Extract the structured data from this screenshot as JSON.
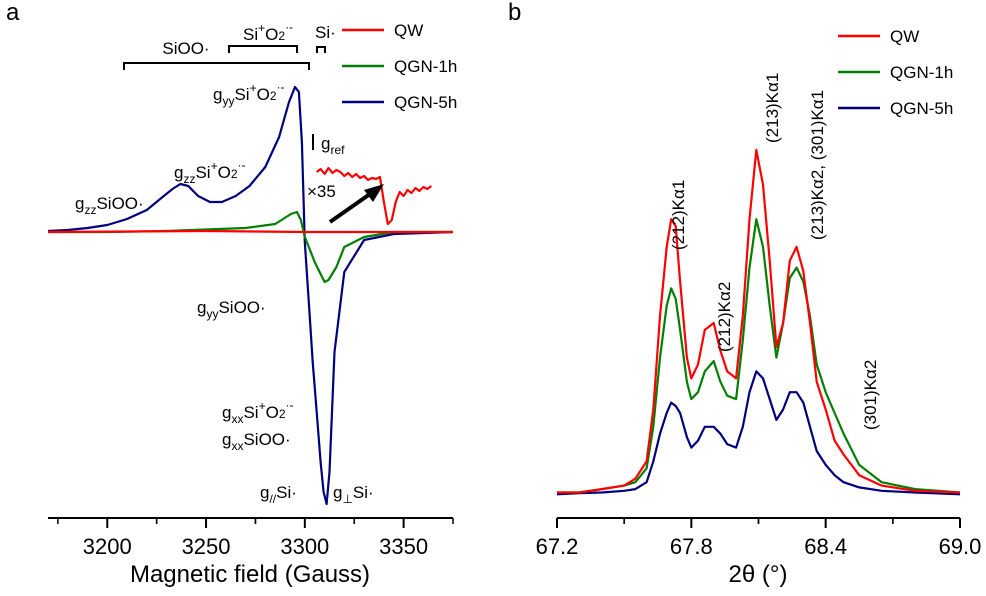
{
  "chart_data": [
    {
      "type": "line",
      "panel_label": "a",
      "title": "",
      "xlabel": "Magnetic field (Gauss)",
      "ylabel": "",
      "xlim": [
        3170,
        3375
      ],
      "ylim": [
        -2.75,
        1.5
      ],
      "x_ticks": [
        3200,
        3250,
        3300,
        3350
      ],
      "x_tick_labels": [
        "3200",
        "3250",
        "3300",
        "3350"
      ],
      "grid": false,
      "legend_position": "top-right",
      "series": [
        {
          "name": "QW",
          "color": "#ff0000",
          "x": [
            3170,
            3250,
            3300,
            3375
          ],
          "y": [
            0,
            0.01,
            0,
            0
          ]
        },
        {
          "name": "QGN-1h",
          "color": "#007f00",
          "x": [
            3170,
            3200,
            3230,
            3250,
            3270,
            3285,
            3293,
            3296,
            3298,
            3300,
            3302,
            3305,
            3308,
            3310,
            3312,
            3316,
            3320,
            3330,
            3345,
            3375
          ],
          "y": [
            0,
            0,
            0.01,
            0.025,
            0.04,
            0.08,
            0.18,
            0.2,
            0.12,
            -0.05,
            -0.15,
            -0.3,
            -0.42,
            -0.5,
            -0.48,
            -0.35,
            -0.15,
            -0.05,
            0,
            0
          ]
        },
        {
          "name": "QGN-5h",
          "color": "#00007f",
          "x": [
            3170,
            3180,
            3190,
            3200,
            3210,
            3220,
            3228,
            3233,
            3237,
            3241,
            3246,
            3252,
            3258,
            3265,
            3272,
            3280,
            3287,
            3292,
            3295,
            3297,
            3298.5,
            3300,
            3302,
            3304,
            3306,
            3308,
            3309.5,
            3311,
            3312.5,
            3315,
            3320,
            3330,
            3345,
            3375
          ],
          "y": [
            0.01,
            0.02,
            0.04,
            0.07,
            0.13,
            0.22,
            0.35,
            0.43,
            0.48,
            0.46,
            0.36,
            0.3,
            0.3,
            0.36,
            0.46,
            0.65,
            0.95,
            1.3,
            1.45,
            1.4,
            0.9,
            -0.1,
            -0.7,
            -1.3,
            -1.8,
            -2.3,
            -2.6,
            -2.72,
            -2.4,
            -1.2,
            -0.4,
            -0.08,
            -0.02,
            0
          ]
        },
        {
          "name": "QW ×35 inset",
          "color": "#ff0000",
          "x": [
            3306,
            3308,
            3310,
            3312,
            3314,
            3316,
            3318,
            3320,
            3322,
            3324,
            3326,
            3328,
            3330,
            3332,
            3334,
            3336,
            3338,
            3340,
            3342,
            3344,
            3346,
            3348,
            3350,
            3352,
            3354,
            3356,
            3358,
            3360,
            3362,
            3364
          ],
          "y": [
            0.6,
            0.63,
            0.58,
            0.64,
            0.59,
            0.62,
            0.6,
            0.56,
            0.59,
            0.55,
            0.58,
            0.54,
            0.56,
            0.52,
            0.54,
            0.53,
            0.55,
            0.3,
            0.08,
            0.12,
            0.3,
            0.4,
            0.36,
            0.42,
            0.39,
            0.44,
            0.41,
            0.45,
            0.43,
            0.46
          ]
        }
      ],
      "annotations": {
        "siOO_bracket": "SiOO·",
        "sio2_bracket": {
          "base": "Si",
          "sup": "+",
          "mid": "O",
          "sub": "2",
          "sup2": "·-"
        },
        "si_bracket": "Si·",
        "gyy_sio2": {
          "g": "g",
          "sub": "yy",
          "base": "Si",
          "sup": "+",
          "mid": "O",
          "sub2": "2",
          "sup2": "·-"
        },
        "gzz_sio2": {
          "g": "g",
          "sub": "zz",
          "base": "Si",
          "sup": "+",
          "mid": "O",
          "sub2": "2",
          "sup2": "·-"
        },
        "gzz_sioo": {
          "g": "g",
          "sub": "zz",
          "text": "SiOO·"
        },
        "gyy_sioo": {
          "g": "g",
          "sub": "yy",
          "text": "SiOO·"
        },
        "gxx_sio2": {
          "g": "g",
          "sub": "xx",
          "base": "Si",
          "sup": "+",
          "mid": "O",
          "sub2": "2",
          "sup2": "·-"
        },
        "gxx_sioo": {
          "g": "g",
          "sub": "xx",
          "text": "SiOO·"
        },
        "gpar_si": {
          "g": "g",
          "sub": "//",
          "text": "Si·"
        },
        "gperp_si": {
          "g": "g",
          "sub": "⊥",
          "text": "Si·"
        },
        "gref": {
          "g": "g",
          "sub": "ref"
        },
        "multiplier": "×35"
      }
    },
    {
      "type": "line",
      "panel_label": "b",
      "title": "",
      "xlabel": "2θ (°)",
      "ylabel": "",
      "xlim": [
        67.2,
        69.0
      ],
      "ylim": [
        0,
        1.0
      ],
      "x_ticks": [
        67.2,
        67.8,
        68.4,
        69.0
      ],
      "x_tick_labels": [
        "67.2",
        "67.8",
        "68.4",
        "69.0"
      ],
      "grid": false,
      "legend_position": "top-right",
      "series": [
        {
          "name": "QW",
          "color": "#ff0000",
          "x": [
            67.2,
            67.3,
            67.4,
            67.5,
            67.55,
            67.6,
            67.63,
            67.66,
            67.69,
            67.71,
            67.73,
            67.75,
            67.78,
            67.8,
            67.83,
            67.86,
            67.9,
            67.93,
            67.96,
            68.0,
            68.03,
            68.06,
            68.09,
            68.12,
            68.15,
            68.18,
            68.21,
            68.24,
            68.27,
            68.3,
            68.33,
            68.36,
            68.4,
            68.44,
            68.48,
            68.55,
            68.65,
            68.8,
            69.0
          ],
          "y": [
            0.01,
            0.01,
            0.02,
            0.03,
            0.05,
            0.1,
            0.25,
            0.52,
            0.72,
            0.8,
            0.78,
            0.62,
            0.4,
            0.34,
            0.38,
            0.48,
            0.5,
            0.42,
            0.36,
            0.34,
            0.52,
            0.8,
            1.0,
            0.9,
            0.68,
            0.43,
            0.5,
            0.68,
            0.72,
            0.65,
            0.5,
            0.33,
            0.25,
            0.16,
            0.12,
            0.06,
            0.03,
            0.015,
            0.01
          ]
        },
        {
          "name": "QGN-1h",
          "color": "#007f00",
          "x": [
            67.2,
            67.3,
            67.4,
            67.5,
            67.55,
            67.6,
            67.63,
            67.66,
            67.69,
            67.71,
            67.73,
            67.75,
            67.78,
            67.8,
            67.83,
            67.86,
            67.9,
            67.93,
            67.96,
            68.0,
            68.03,
            68.06,
            68.09,
            68.12,
            68.15,
            68.18,
            68.21,
            68.24,
            68.27,
            68.3,
            68.33,
            68.36,
            68.4,
            68.44,
            68.48,
            68.55,
            68.65,
            68.8,
            69.0
          ],
          "y": [
            0.01,
            0.01,
            0.02,
            0.03,
            0.04,
            0.08,
            0.2,
            0.4,
            0.55,
            0.6,
            0.57,
            0.48,
            0.33,
            0.28,
            0.3,
            0.36,
            0.39,
            0.33,
            0.29,
            0.28,
            0.45,
            0.66,
            0.8,
            0.72,
            0.55,
            0.4,
            0.5,
            0.63,
            0.66,
            0.62,
            0.52,
            0.38,
            0.3,
            0.24,
            0.18,
            0.09,
            0.04,
            0.02,
            0.01
          ]
        },
        {
          "name": "QGN-5h",
          "color": "#00007f",
          "x": [
            67.2,
            67.3,
            67.4,
            67.5,
            67.55,
            67.6,
            67.63,
            67.66,
            67.69,
            67.71,
            67.73,
            67.75,
            67.78,
            67.8,
            67.83,
            67.86,
            67.9,
            67.93,
            67.96,
            68.0,
            68.03,
            68.06,
            68.09,
            68.12,
            68.15,
            68.18,
            68.21,
            68.24,
            68.27,
            68.3,
            68.33,
            68.36,
            68.4,
            68.44,
            68.48,
            68.55,
            68.65,
            68.8,
            69.0
          ],
          "y": [
            0.005,
            0.008,
            0.01,
            0.015,
            0.02,
            0.04,
            0.1,
            0.18,
            0.24,
            0.27,
            0.26,
            0.24,
            0.17,
            0.14,
            0.16,
            0.2,
            0.2,
            0.18,
            0.15,
            0.14,
            0.2,
            0.3,
            0.36,
            0.34,
            0.28,
            0.22,
            0.25,
            0.3,
            0.3,
            0.27,
            0.2,
            0.13,
            0.09,
            0.06,
            0.04,
            0.025,
            0.015,
            0.01,
            0.005
          ]
        }
      ],
      "annotations": {
        "peak_212ka1": "(212)Kα1",
        "peak_212ka2": "(212)Kα2",
        "peak_213ka1": "(213)Kα1",
        "peak_213ka2_301ka1": "(213)Kα2, (301)Kα1",
        "peak_301ka2": "(301)Kα2"
      }
    }
  ]
}
